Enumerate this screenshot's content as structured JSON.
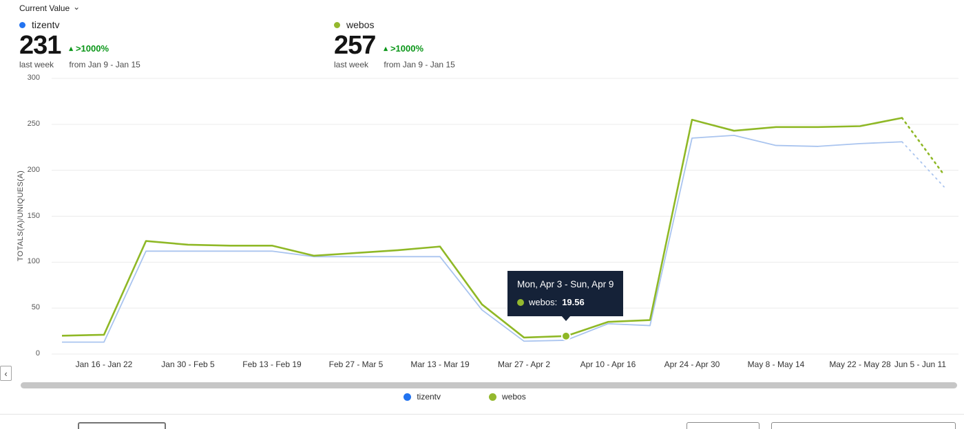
{
  "header": {
    "metric_selector_label": "Current Value",
    "chevron_icon": "⌄"
  },
  "metrics": [
    {
      "name": "tizentv",
      "color": "#2273f0",
      "value": "231",
      "period": "last week",
      "change_icon": "▴",
      "change": ">1000%",
      "change_color": "#0a9618",
      "compare_period": "from Jan 9 - Jan 15"
    },
    {
      "name": "webos",
      "color": "#94b82e",
      "value": "257",
      "period": "last week",
      "change_icon": "▴",
      "change": ">1000%",
      "change_color": "#0a9618",
      "compare_period": "from Jan 9 - Jan 15"
    }
  ],
  "chart_data": {
    "type": "line",
    "ylabel": "TOTALS(A)/UNIQUES(A)",
    "ylim": [
      0,
      300
    ],
    "yticks": [
      0,
      50,
      100,
      150,
      200,
      250,
      300
    ],
    "grid": "horizontal",
    "legend_position": "bottom",
    "x_tick_labels": [
      "Jan 16 - Jan 22",
      "Jan 30 - Feb 5",
      "Feb 13 - Feb 19",
      "Feb 27 - Mar 5",
      "Mar 13 - Mar 19",
      "Mar 27 - Apr 2",
      "Apr 10 - Apr 16",
      "Apr 24 - Apr 30",
      "May 8 - May 14",
      "May 22 - May 28",
      "Jun 5 - Jun 11"
    ],
    "series": [
      {
        "name": "tizentv",
        "color": "#a9c4ef",
        "width": 1.8,
        "values": [
          13,
          13,
          112,
          112,
          112,
          112,
          106,
          106,
          106,
          106,
          48,
          14,
          15,
          33,
          31,
          235,
          238,
          227,
          226,
          229,
          231
        ],
        "projection": 182
      },
      {
        "name": "webos",
        "color": "#8fb826",
        "width": 2.6,
        "values": [
          20,
          21,
          123,
          119,
          118,
          118,
          107,
          110,
          113,
          117,
          54,
          18,
          19.56,
          35,
          37,
          255,
          243,
          247,
          247,
          248,
          257
        ],
        "projection": 195
      }
    ],
    "marker": {
      "series": "webos",
      "index": 12,
      "value": 19.56
    }
  },
  "tooltip": {
    "title": "Mon, Apr 3 - Sun, Apr 9",
    "series_label": "webos:",
    "value": "19.56",
    "bg": "#152238"
  },
  "legend": [
    {
      "label": "tizentv",
      "color": "#2273f0"
    },
    {
      "label": "webos",
      "color": "#94b82e"
    }
  ],
  "scrollbar": {
    "left_arrow": "‹"
  }
}
